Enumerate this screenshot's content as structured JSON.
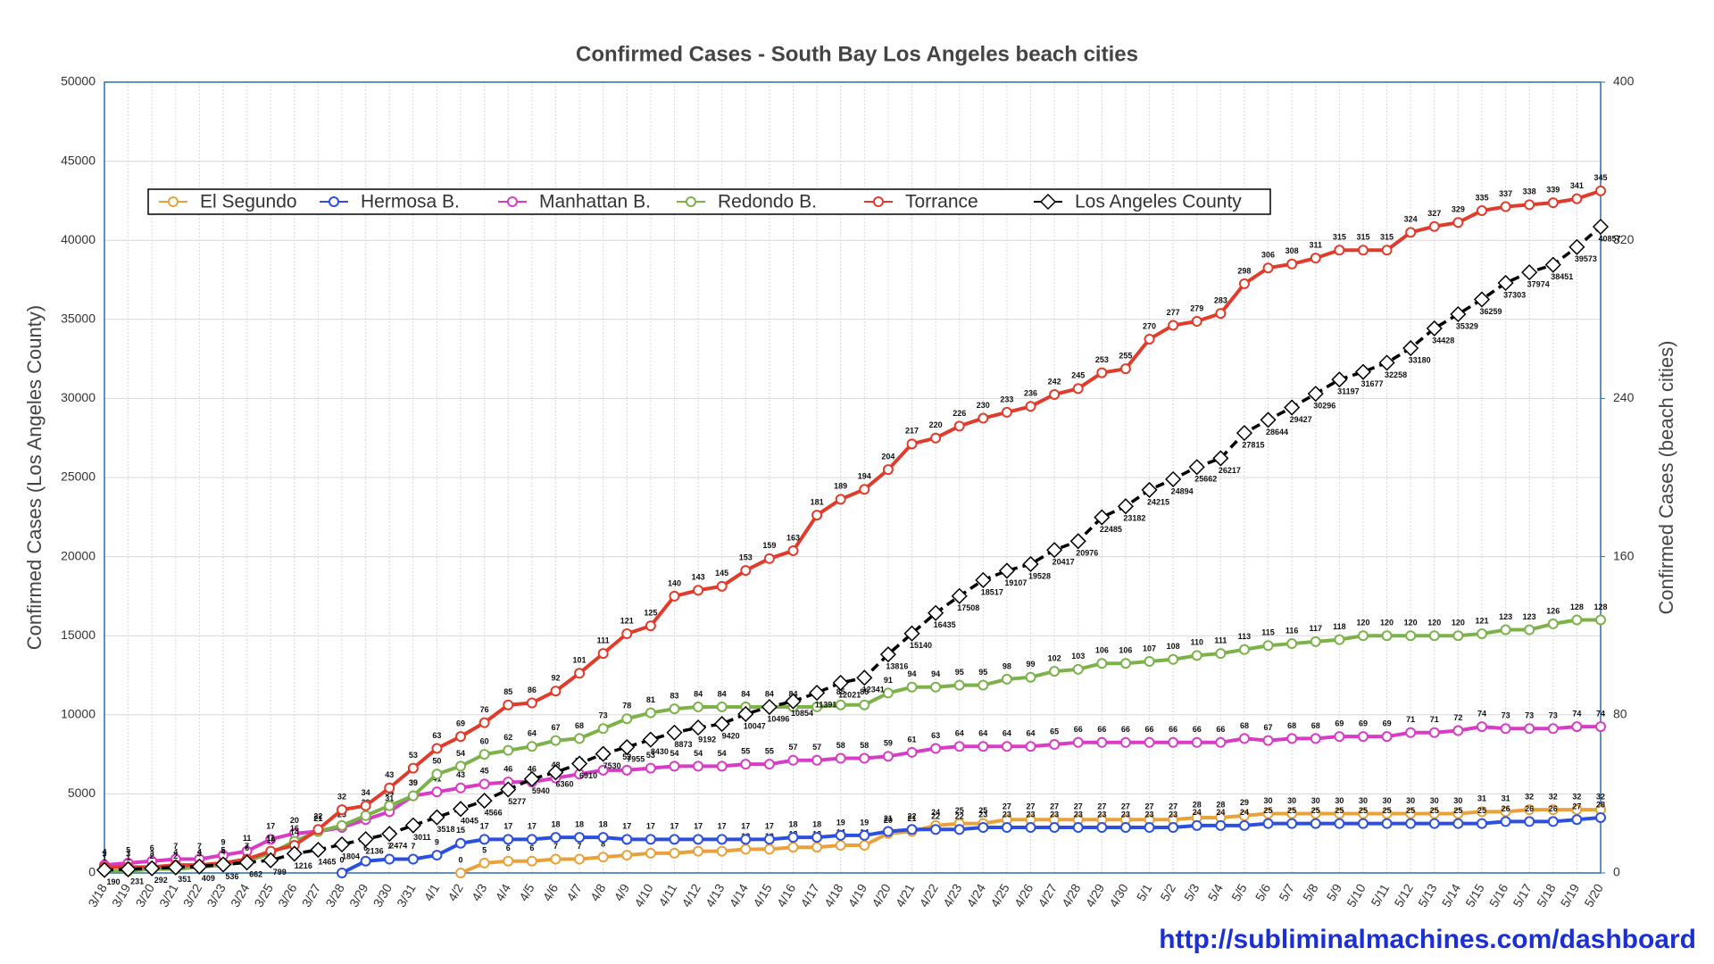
{
  "chart_data": {
    "type": "line",
    "title": "Confirmed Cases - South Bay Los Angeles beach cities",
    "y_label": "Confirmed Cases (Los Angeles County)",
    "y2_label": "Confirmed Cases (beach cities)",
    "footer": "http://subliminalmachines.com/dashboard",
    "categories": [
      "3/18",
      "3/19",
      "3/20",
      "3/21",
      "3/22",
      "3/23",
      "3/24",
      "3/25",
      "3/26",
      "3/27",
      "3/28",
      "3/29",
      "3/30",
      "3/31",
      "4/1",
      "4/2",
      "4/3",
      "4/4",
      "4/5",
      "4/6",
      "4/7",
      "4/8",
      "4/9",
      "4/10",
      "4/11",
      "4/12",
      "4/13",
      "4/14",
      "4/15",
      "4/16",
      "4/17",
      "4/18",
      "4/19",
      "4/20",
      "4/21",
      "4/22",
      "4/23",
      "4/24",
      "4/25",
      "4/26",
      "4/27",
      "4/28",
      "4/29",
      "4/30",
      "5/1",
      "5/2",
      "5/3",
      "5/4",
      "5/5",
      "5/6",
      "5/7",
      "5/8",
      "5/9",
      "5/10",
      "5/11",
      "5/12",
      "5/13",
      "5/14",
      "5/15",
      "5/16",
      "5/17",
      "5/18",
      "5/19",
      "5/20"
    ],
    "ylim": [
      0,
      50000
    ],
    "yticks": [
      0,
      5000,
      10000,
      15000,
      20000,
      25000,
      30000,
      35000,
      40000,
      45000,
      50000
    ],
    "y2lim": [
      0,
      400
    ],
    "y2ticks": [
      0,
      80,
      160,
      240,
      320,
      400
    ],
    "grid": true,
    "legend": "top-left",
    "series": [
      {
        "name": "El Segundo",
        "color": "#e9a23b",
        "axis": "y2",
        "values": [
          null,
          null,
          null,
          null,
          null,
          null,
          null,
          null,
          null,
          null,
          null,
          null,
          null,
          null,
          null,
          0,
          5,
          6,
          6,
          7,
          7,
          8,
          9,
          10,
          10,
          11,
          11,
          12,
          12,
          13,
          13,
          14,
          14,
          20,
          21,
          24,
          25,
          25,
          27,
          27,
          27,
          27,
          27,
          27,
          27,
          27,
          28,
          28,
          29,
          30,
          30,
          30,
          30,
          30,
          30,
          30,
          30,
          30,
          31,
          31,
          32,
          32,
          32,
          32
        ]
      },
      {
        "name": "Hermosa B.",
        "color": "#2d4fe0",
        "axis": "y2",
        "values": [
          null,
          null,
          null,
          null,
          null,
          null,
          null,
          null,
          null,
          null,
          0,
          6,
          7,
          7,
          9,
          15,
          17,
          17,
          17,
          18,
          18,
          18,
          17,
          17,
          17,
          17,
          17,
          17,
          17,
          18,
          18,
          19,
          19,
          21,
          22,
          22,
          22,
          23,
          23,
          23,
          23,
          23,
          23,
          23,
          23,
          23,
          24,
          24,
          24,
          25,
          25,
          25,
          25,
          25,
          25,
          25,
          25,
          25,
          25,
          26,
          26,
          26,
          27,
          28
        ]
      },
      {
        "name": "Manhattan B.",
        "color": "#d83cc6",
        "axis": "y2",
        "values": [
          4,
          5,
          6,
          7,
          7,
          9,
          11,
          17,
          20,
          21,
          23,
          27,
          31,
          39,
          41,
          43,
          45,
          46,
          46,
          48,
          50,
          52,
          52,
          53,
          54,
          54,
          54,
          55,
          55,
          57,
          57,
          58,
          58,
          59,
          61,
          63,
          64,
          64,
          64,
          64,
          65,
          66,
          66,
          66,
          66,
          66,
          66,
          66,
          68,
          67,
          68,
          68,
          69,
          69,
          69,
          71,
          71,
          72,
          74,
          73,
          73,
          73,
          74,
          74
        ]
      },
      {
        "name": "Redondo B.",
        "color": "#7db24a",
        "axis": "y2",
        "values": [
          1,
          1,
          2,
          2,
          3,
          4,
          6,
          10,
          16,
          21,
          24,
          29,
          34,
          39,
          50,
          54,
          60,
          62,
          64,
          67,
          68,
          73,
          78,
          81,
          83,
          84,
          84,
          84,
          84,
          84,
          84,
          85,
          85,
          91,
          94,
          94,
          95,
          95,
          98,
          99,
          102,
          103,
          106,
          106,
          107,
          108,
          110,
          111,
          113,
          115,
          116,
          117,
          118,
          120,
          120,
          120,
          120,
          120,
          121,
          123,
          123,
          126,
          128,
          128
        ]
      },
      {
        "name": "Torrance",
        "color": "#e03b2b",
        "axis": "y2",
        "values": [
          3,
          3,
          3,
          4,
          4,
          5,
          7,
          11,
          14,
          22,
          32,
          34,
          43,
          53,
          63,
          69,
          76,
          85,
          86,
          92,
          101,
          111,
          121,
          125,
          140,
          143,
          145,
          153,
          159,
          163,
          181,
          189,
          194,
          204,
          217,
          220,
          226,
          230,
          233,
          236,
          242,
          245,
          253,
          255,
          270,
          277,
          279,
          283,
          298,
          306,
          308,
          311,
          315,
          315,
          315,
          324,
          327,
          329,
          335,
          337,
          338,
          339,
          341,
          345
        ]
      },
      {
        "name": "Los Angeles County",
        "color": "#000000",
        "axis": "y",
        "dashed": true,
        "values": [
          190,
          231,
          292,
          351,
          409,
          536,
          662,
          799,
          1216,
          1465,
          1804,
          2136,
          2474,
          3011,
          3518,
          4045,
          4566,
          5277,
          5940,
          6360,
          6910,
          7530,
          7955,
          8430,
          8873,
          9192,
          9420,
          10047,
          10496,
          10854,
          11391,
          12021,
          12341,
          13816,
          15140,
          16435,
          17508,
          18517,
          19107,
          19528,
          20417,
          20976,
          22485,
          23182,
          24215,
          24894,
          25662,
          26217,
          27815,
          28644,
          29427,
          30296,
          31197,
          31677,
          32258,
          33180,
          34428,
          35329,
          36259,
          37303,
          37974,
          38451,
          39573,
          40857
        ]
      }
    ]
  }
}
